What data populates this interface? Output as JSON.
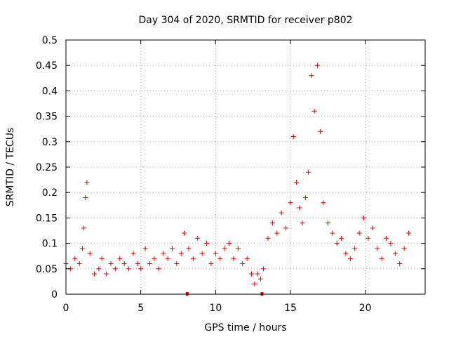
{
  "chart_data": {
    "type": "scatter",
    "title": "Day 304 of 2020, SRMTID for receiver p802",
    "xlabel": "GPS time / hours",
    "ylabel": "SRMTID / TECUs",
    "xlim": [
      0,
      24
    ],
    "ylim": [
      0,
      0.5
    ],
    "xticks": [
      0,
      5,
      10,
      15,
      20
    ],
    "xtick_labels": [
      "0",
      "5",
      "10",
      "15",
      "20"
    ],
    "yticks": [
      0,
      0.05,
      0.1,
      0.15,
      0.2,
      0.25,
      0.3,
      0.35,
      0.4,
      0.45,
      0.5
    ],
    "ytick_labels": [
      "0",
      "0.05",
      "0.1",
      "0.15",
      "0.2",
      "0.25",
      "0.3",
      "0.35",
      "0.4",
      "0.45",
      "0.5"
    ],
    "grid": true,
    "marker": "+",
    "color": "#e00000",
    "series": [
      {
        "name": "SRMTID",
        "x": [
          0.0,
          0.3,
          0.6,
          0.9,
          1.1,
          1.2,
          1.3,
          1.4,
          1.6,
          1.9,
          2.2,
          2.4,
          2.7,
          3.0,
          3.3,
          3.6,
          3.9,
          4.2,
          4.5,
          4.8,
          5.0,
          5.3,
          5.6,
          5.9,
          6.2,
          6.5,
          6.8,
          7.1,
          7.4,
          7.7,
          7.9,
          8.2,
          8.5,
          8.8,
          9.1,
          9.4,
          9.7,
          10.0,
          10.3,
          10.6,
          10.9,
          11.2,
          11.5,
          11.8,
          12.1,
          12.4,
          12.6,
          12.8,
          13.0,
          13.2,
          13.5,
          13.8,
          14.1,
          14.4,
          14.7,
          15.0,
          15.2,
          15.4,
          15.6,
          15.8,
          16.0,
          16.2,
          16.4,
          16.6,
          16.8,
          17.0,
          17.2,
          17.5,
          17.8,
          18.1,
          18.4,
          18.7,
          19.0,
          19.3,
          19.6,
          19.9,
          20.2,
          20.5,
          20.8,
          21.1,
          21.4,
          21.7,
          22.0,
          22.3,
          22.6,
          22.9
        ],
        "values": [
          0.06,
          0.05,
          0.07,
          0.06,
          0.09,
          0.13,
          0.19,
          0.22,
          0.08,
          0.04,
          0.05,
          0.07,
          0.04,
          0.06,
          0.05,
          0.07,
          0.06,
          0.05,
          0.08,
          0.06,
          0.05,
          0.09,
          0.06,
          0.07,
          0.05,
          0.08,
          0.07,
          0.09,
          0.06,
          0.08,
          0.12,
          0.09,
          0.07,
          0.11,
          0.08,
          0.1,
          0.06,
          0.08,
          0.07,
          0.09,
          0.1,
          0.07,
          0.09,
          0.06,
          0.07,
          0.04,
          0.02,
          0.04,
          0.03,
          0.05,
          0.11,
          0.14,
          0.12,
          0.16,
          0.13,
          0.18,
          0.31,
          0.22,
          0.17,
          0.14,
          0.19,
          0.24,
          0.43,
          0.36,
          0.45,
          0.32,
          0.18,
          0.14,
          0.12,
          0.1,
          0.11,
          0.08,
          0.07,
          0.09,
          0.12,
          0.15,
          0.11,
          0.13,
          0.09,
          0.07,
          0.11,
          0.1,
          0.08,
          0.06,
          0.09,
          0.12
        ]
      }
    ],
    "gap_markers_x": [
      8.1,
      13.1
    ]
  }
}
